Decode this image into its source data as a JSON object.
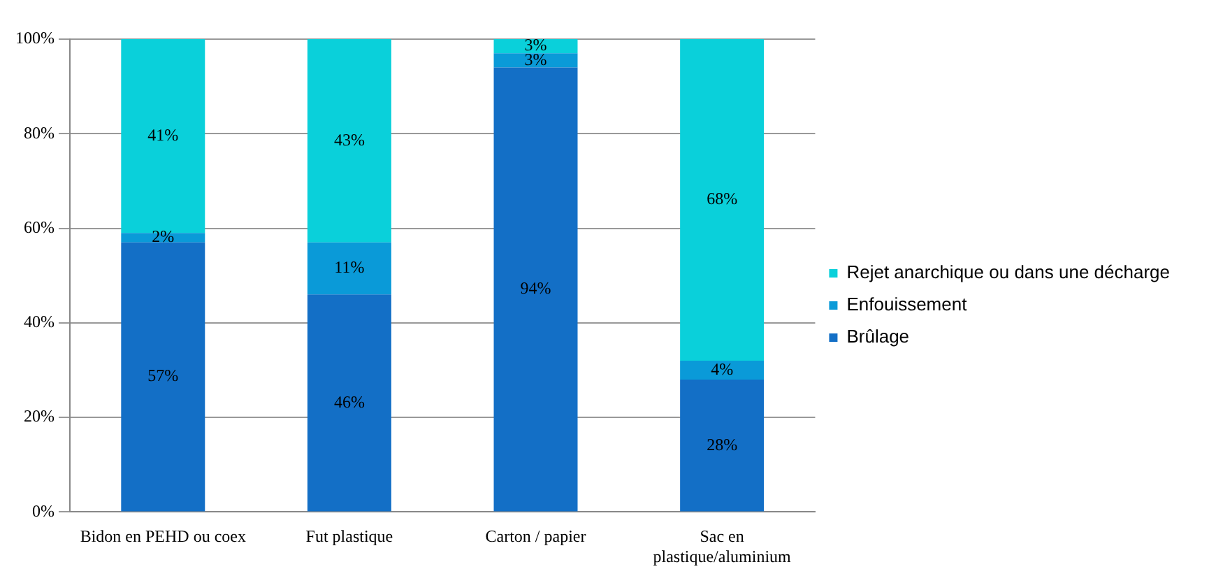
{
  "chart_data": {
    "type": "bar",
    "stacked": true,
    "categories": [
      "Bidon en PEHD ou coex",
      "Fut plastique",
      "Carton / papier",
      "Sac en plastique/aluminium"
    ],
    "series": [
      {
        "name": "Brûlage",
        "color": "#136fc6",
        "values": [
          57,
          46,
          94,
          28
        ],
        "value_labels": [
          "57%",
          "46%",
          "94%",
          "28%"
        ]
      },
      {
        "name": "Enfouissement",
        "color": "#0a9ad8",
        "values": [
          2,
          11,
          3,
          4
        ],
        "value_labels": [
          "2%",
          "11%",
          "3%",
          "4%"
        ]
      },
      {
        "name": "Rejet anarchique ou dans une décharge",
        "color": "#0ad0da",
        "values": [
          41,
          43,
          3,
          68
        ],
        "value_labels": [
          "41%",
          "43%",
          "3%",
          "68%"
        ]
      }
    ],
    "ylim": [
      0,
      100
    ],
    "yticks": [
      {
        "value": 0,
        "label": "0%"
      },
      {
        "value": 20,
        "label": "20%"
      },
      {
        "value": 40,
        "label": "40%"
      },
      {
        "value": 60,
        "label": "60%"
      },
      {
        "value": 80,
        "label": "80%"
      },
      {
        "value": 100,
        "label": "100%"
      }
    ],
    "grid": "y",
    "legend": "right"
  }
}
